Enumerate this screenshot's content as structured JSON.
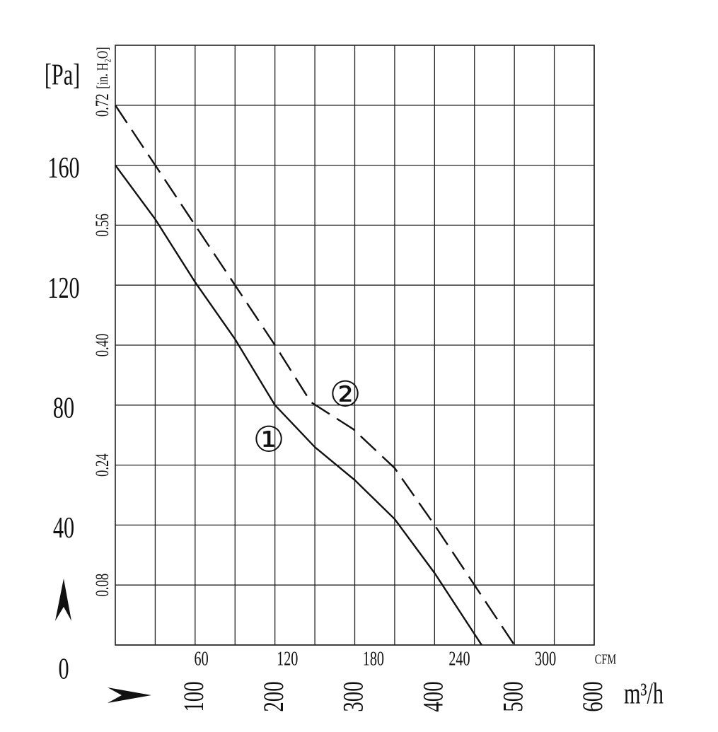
{
  "chart_data": {
    "type": "line",
    "x": [
      0,
      50,
      100,
      150,
      200,
      245,
      250,
      298,
      300,
      350,
      400,
      450,
      459,
      500
    ],
    "series": [
      {
        "name": "①",
        "color": "#111111",
        "dash": "solid",
        "x": [
          0,
          50,
          100,
          150,
          200,
          250,
          300,
          350,
          400,
          459
        ],
        "values": [
          160,
          142,
          121,
          102,
          80,
          66,
          55,
          42,
          24,
          0
        ]
      },
      {
        "name": "②",
        "color": "#111111",
        "dash": "dashed",
        "x": [
          0,
          50,
          100,
          150,
          200,
          245,
          298,
          350,
          400,
          450,
          500
        ],
        "values": [
          180,
          160,
          140,
          120,
          100,
          81,
          72,
          59,
          40,
          20,
          0
        ]
      }
    ],
    "ylabel": "[Pa]",
    "y2label": "[in. H₂O]",
    "xlabel": "m³/h",
    "x2label": "CFM",
    "xlim": [
      0,
      600
    ],
    "xticks": [
      100,
      200,
      300,
      400,
      500,
      600
    ],
    "x_minor_ticks": [
      50,
      150,
      250,
      350,
      450,
      550
    ],
    "x2lim": [
      0,
      334
    ],
    "x2ticks": [
      60,
      120,
      180,
      240,
      300
    ],
    "ylim": [
      0,
      200
    ],
    "yticks": [
      0,
      40,
      80,
      120,
      160
    ],
    "y2lim": [
      0,
      0.8
    ],
    "y2ticks": [
      0.08,
      0.24,
      {
        "value": 0.4,
        "label": "0.40"
      },
      0.56,
      0.72
    ],
    "grid": true
  }
}
